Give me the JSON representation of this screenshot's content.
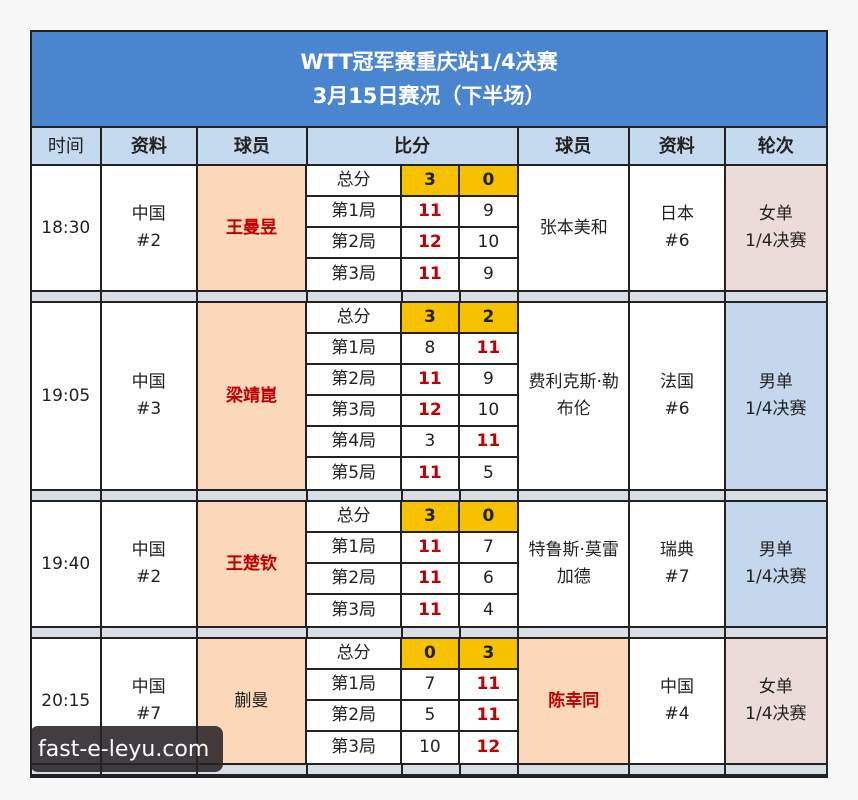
{
  "title": {
    "line1": "WTT冠军赛重庆站1/4决赛",
    "line2": "3月15日赛况（下半场）"
  },
  "headers": [
    "时间",
    "资料",
    "球员",
    "比分",
    "球员",
    "资料",
    "轮次"
  ],
  "colors": {
    "header_bg": "#4a86cf",
    "col_header_bg": "#c5d9ef",
    "winner_bg": "#fbd8b9",
    "total_bg": "#f6c200",
    "winner_text": "#c00000",
    "women_round_bg": "#ecdcd9",
    "men_round_bg": "#c4d7ec"
  },
  "matches": [
    {
      "time": "18:30",
      "p1_country": "中国",
      "p1_rank": "#2",
      "p1": "王曼昱",
      "p1_win": true,
      "p2": "张本美和",
      "p2_win": false,
      "p2_country": "日本",
      "p2_rank": "#6",
      "round_type": "女单",
      "round": "1/4决赛",
      "women": true,
      "games": [
        {
          "label": "总分",
          "a": "3",
          "b": "0"
        },
        {
          "label": "第1局",
          "a": "11",
          "b": "9"
        },
        {
          "label": "第2局",
          "a": "12",
          "b": "10"
        },
        {
          "label": "第3局",
          "a": "11",
          "b": "9"
        }
      ]
    },
    {
      "time": "19:05",
      "p1_country": "中国",
      "p1_rank": "#3",
      "p1": "梁靖崑",
      "p1_win": true,
      "p2": "费利克斯·勒布伦",
      "p2_win": false,
      "p2_country": "法国",
      "p2_rank": "#6",
      "round_type": "男单",
      "round": "1/4决赛",
      "women": false,
      "games": [
        {
          "label": "总分",
          "a": "3",
          "b": "2"
        },
        {
          "label": "第1局",
          "a": "8",
          "b": "11"
        },
        {
          "label": "第2局",
          "a": "11",
          "b": "9"
        },
        {
          "label": "第3局",
          "a": "12",
          "b": "10"
        },
        {
          "label": "第4局",
          "a": "3",
          "b": "11"
        },
        {
          "label": "第5局",
          "a": "11",
          "b": "5"
        }
      ]
    },
    {
      "time": "19:40",
      "p1_country": "中国",
      "p1_rank": "#2",
      "p1": "王楚钦",
      "p1_win": true,
      "p2": "特鲁斯·莫雷加德",
      "p2_win": false,
      "p2_country": "瑞典",
      "p2_rank": "#7",
      "round_type": "男单",
      "round": "1/4决赛",
      "women": false,
      "games": [
        {
          "label": "总分",
          "a": "3",
          "b": "0"
        },
        {
          "label": "第1局",
          "a": "11",
          "b": "7"
        },
        {
          "label": "第2局",
          "a": "11",
          "b": "6"
        },
        {
          "label": "第3局",
          "a": "11",
          "b": "4"
        }
      ]
    },
    {
      "time": "20:15",
      "p1_country": "中国",
      "p1_rank": "#7",
      "p1": "蒯曼",
      "p1_win": false,
      "p2": "陈幸同",
      "p2_win": true,
      "p2_country": "中国",
      "p2_rank": "#4",
      "round_type": "女单",
      "round": "1/4决赛",
      "women": true,
      "games": [
        {
          "label": "总分",
          "a": "0",
          "b": "3"
        },
        {
          "label": "第1局",
          "a": "7",
          "b": "11"
        },
        {
          "label": "第2局",
          "a": "5",
          "b": "11"
        },
        {
          "label": "第3局",
          "a": "10",
          "b": "12"
        }
      ]
    }
  ],
  "watermark": "fast-e-leyu.com"
}
